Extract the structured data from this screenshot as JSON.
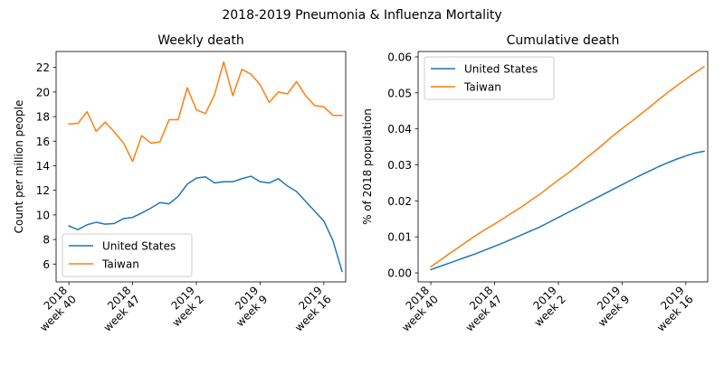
{
  "suptitle": "2018-2019 Pneumonia & Influenza Mortality",
  "colors": {
    "United States": "#1f77b4",
    "Taiwan": "#ff7f0e"
  },
  "chart_data": [
    {
      "type": "line",
      "title": "Weekly death",
      "xlabel": "",
      "ylabel": "Count per million people",
      "x_tick_labels": [
        [
          "2018",
          "week 40"
        ],
        [
          "2018",
          "week 47"
        ],
        [
          "2019",
          "week 2"
        ],
        [
          "2019",
          "week 9"
        ],
        [
          "2019",
          "week 16"
        ]
      ],
      "x_tick_positions": [
        0,
        7,
        14,
        21,
        28
      ],
      "xlim": [
        -1.4,
        30.4
      ],
      "y_ticks": [
        6,
        8,
        10,
        12,
        14,
        16,
        18,
        20,
        22
      ],
      "y_tick_labels": [
        "6",
        "8",
        "10",
        "12",
        "14",
        "16",
        "18",
        "20",
        "22"
      ],
      "ylim": [
        4.55,
        23.3
      ],
      "grid": false,
      "legend_position": "lower-left",
      "series": [
        {
          "name": "United States",
          "values": [
            9.1,
            8.8,
            9.2,
            9.4,
            9.25,
            9.3,
            9.7,
            9.8,
            10.15,
            10.55,
            11.0,
            10.9,
            11.5,
            12.5,
            13.0,
            13.1,
            12.6,
            12.7,
            12.7,
            12.95,
            13.15,
            12.7,
            12.6,
            12.95,
            12.35,
            11.9,
            11.1,
            10.3,
            9.5,
            7.9,
            5.4
          ]
        },
        {
          "name": "Taiwan",
          "values": [
            17.4,
            17.45,
            18.4,
            16.8,
            17.55,
            16.75,
            15.85,
            14.35,
            16.45,
            15.85,
            15.95,
            17.75,
            17.75,
            20.35,
            18.55,
            18.25,
            19.8,
            22.45,
            19.7,
            21.85,
            21.45,
            20.6,
            19.15,
            20.0,
            19.85,
            20.85,
            19.7,
            18.9,
            18.8,
            18.1,
            18.1
          ]
        }
      ]
    },
    {
      "type": "line",
      "title": "Cumulative death",
      "xlabel": "",
      "ylabel": "% of 2018 population",
      "x_tick_labels": [
        [
          "2018",
          "week 40"
        ],
        [
          "2018",
          "week 47"
        ],
        [
          "2019",
          "week 2"
        ],
        [
          "2019",
          "week 9"
        ],
        [
          "2019",
          "week 16"
        ]
      ],
      "x_tick_positions": [
        0,
        7,
        14,
        21,
        28
      ],
      "xlim": [
        -1.4,
        30.4
      ],
      "y_ticks": [
        0.0,
        0.01,
        0.02,
        0.03,
        0.04,
        0.05,
        0.06
      ],
      "y_tick_labels": [
        "0.00",
        "0.01",
        "0.02",
        "0.03",
        "0.04",
        "0.05",
        "0.06"
      ],
      "ylim": [
        -0.0025,
        0.0615
      ],
      "grid": false,
      "legend_position": "upper-left",
      "series": [
        {
          "name": "United States",
          "values": [
            0.0009,
            0.0018,
            0.0027,
            0.0036,
            0.0045,
            0.0054,
            0.0064,
            0.0074,
            0.0084,
            0.0095,
            0.0106,
            0.0117,
            0.0128,
            0.0141,
            0.0154,
            0.0167,
            0.018,
            0.0193,
            0.0206,
            0.0219,
            0.0232,
            0.0245,
            0.0258,
            0.0271,
            0.0283,
            0.0295,
            0.0306,
            0.0316,
            0.0325,
            0.0333,
            0.0338
          ]
        },
        {
          "name": "Taiwan",
          "values": [
            0.0017,
            0.0035,
            0.0053,
            0.007,
            0.0088,
            0.0105,
            0.0121,
            0.0136,
            0.0152,
            0.0168,
            0.0184,
            0.0202,
            0.0219,
            0.0239,
            0.0258,
            0.0276,
            0.0296,
            0.0318,
            0.0338,
            0.0359,
            0.0381,
            0.0401,
            0.042,
            0.044,
            0.046,
            0.0481,
            0.0501,
            0.052,
            0.0538,
            0.0556,
            0.0573
          ]
        }
      ]
    }
  ]
}
